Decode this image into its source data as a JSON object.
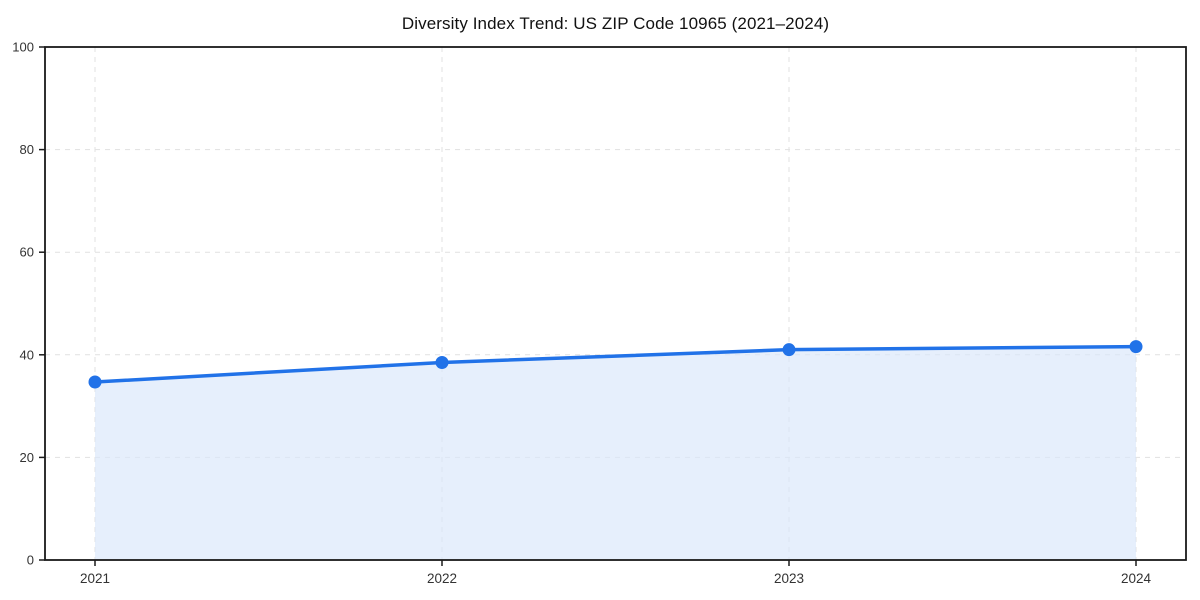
{
  "chart_data": {
    "type": "area",
    "title": "Diversity Index Trend: US ZIP Code 10965 (2021–2024)",
    "x_labels": [
      "2021",
      "2022",
      "2023",
      "2024"
    ],
    "series": [
      {
        "name": "Diversity Index",
        "values": [
          34.7,
          38.5,
          41.0,
          41.6
        ]
      }
    ],
    "xlabel": "",
    "ylabel": "",
    "ylim": [
      0,
      100
    ],
    "yticks": [
      0,
      20,
      40,
      60,
      80,
      100
    ],
    "grid": "dashed",
    "legend_position": "none",
    "colors": {
      "line": "#2172e8",
      "marker": "#2172e8",
      "fill": "#d9e7fb",
      "grid": "#e1e1e1",
      "spine": "#1a1a1a",
      "tick_label": "#333333",
      "background": "#ffffff"
    }
  }
}
